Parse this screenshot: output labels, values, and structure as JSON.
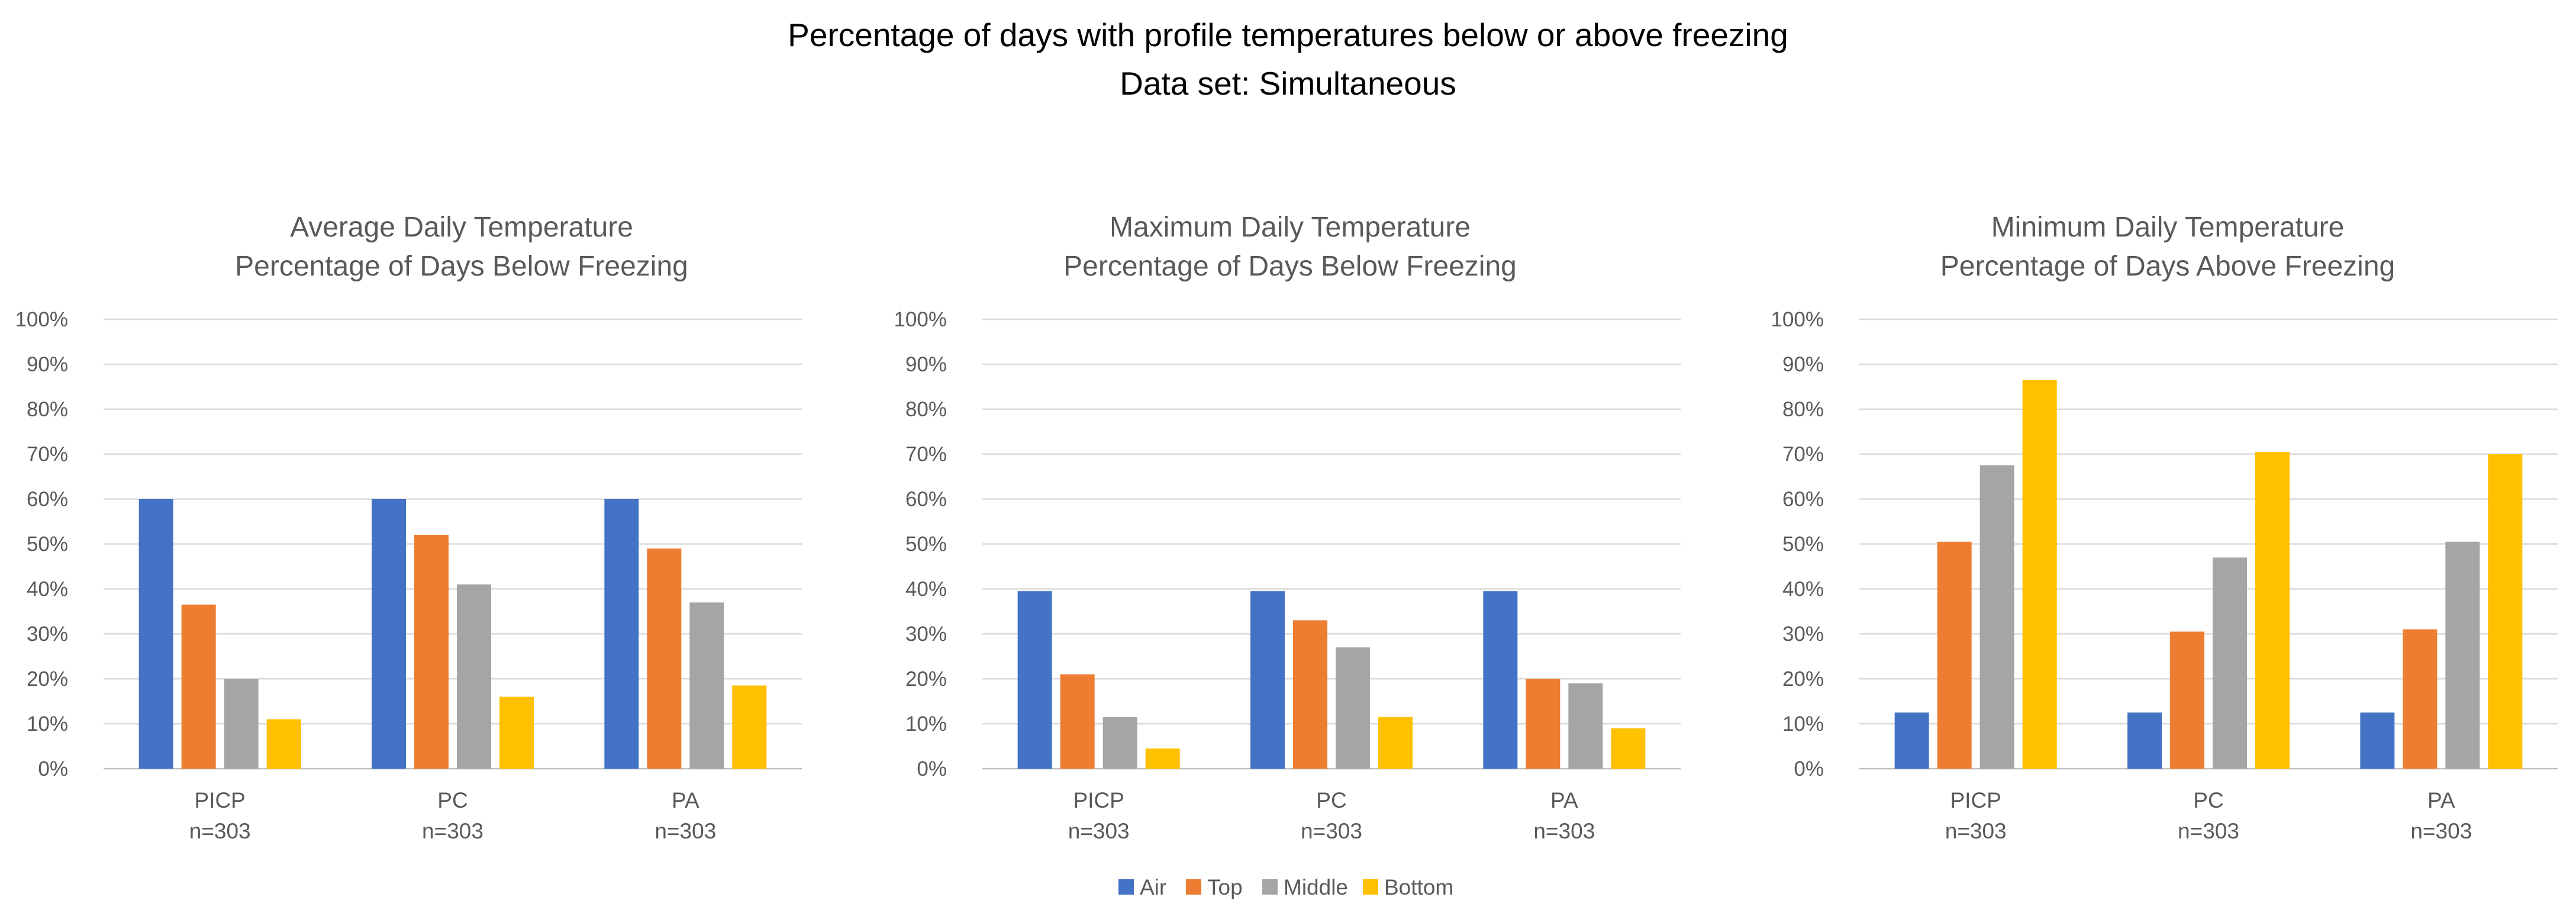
{
  "title": {
    "line1": "Percentage of days with profile temperatures below or above freezing",
    "line2": "Data set: Simultaneous"
  },
  "legend": [
    "Air",
    "Top",
    "Middle",
    "Bottom"
  ],
  "colors": {
    "Air": "#4472C4",
    "Top": "#ED7D31",
    "Middle": "#A5A5A5",
    "Bottom": "#FFC000",
    "grid": "#D9D9D9",
    "axis_text": "#595959"
  },
  "chart_data": [
    {
      "type": "bar",
      "title": [
        "Average Daily Temperature",
        "Percentage of Days Below Freezing"
      ],
      "categories": [
        "PICP",
        "PC",
        "PA"
      ],
      "category_subtitles": [
        "n=303",
        "n=303",
        "n=303"
      ],
      "yticks": [
        "0%",
        "10%",
        "20%",
        "30%",
        "40%",
        "50%",
        "60%",
        "70%",
        "80%",
        "90%",
        "100%"
      ],
      "ylim": [
        0,
        100
      ],
      "series": [
        {
          "name": "Air",
          "values": [
            60,
            60,
            60
          ]
        },
        {
          "name": "Top",
          "values": [
            36.5,
            52,
            49
          ]
        },
        {
          "name": "Middle",
          "values": [
            20,
            41,
            37
          ]
        },
        {
          "name": "Bottom",
          "values": [
            11,
            16,
            18.5
          ]
        }
      ]
    },
    {
      "type": "bar",
      "title": [
        "Maximum Daily Temperature",
        "Percentage of Days Below Freezing"
      ],
      "categories": [
        "PICP",
        "PC",
        "PA"
      ],
      "category_subtitles": [
        "n=303",
        "n=303",
        "n=303"
      ],
      "yticks": [
        "0%",
        "10%",
        "20%",
        "30%",
        "40%",
        "50%",
        "60%",
        "70%",
        "80%",
        "90%",
        "100%"
      ],
      "ylim": [
        0,
        100
      ],
      "series": [
        {
          "name": "Air",
          "values": [
            39.5,
            39.5,
            39.5
          ]
        },
        {
          "name": "Top",
          "values": [
            21,
            33,
            20
          ]
        },
        {
          "name": "Middle",
          "values": [
            11.5,
            27,
            19
          ]
        },
        {
          "name": "Bottom",
          "values": [
            4.5,
            11.5,
            9
          ]
        }
      ]
    },
    {
      "type": "bar",
      "title": [
        "Minimum Daily Temperature",
        "Percentage of Days Above Freezing"
      ],
      "categories": [
        "PICP",
        "PC",
        "PA"
      ],
      "category_subtitles": [
        "n=303",
        "n=303",
        "n=303"
      ],
      "yticks": [
        "0%",
        "10%",
        "20%",
        "30%",
        "40%",
        "50%",
        "60%",
        "70%",
        "80%",
        "90%",
        "100%"
      ],
      "ylim": [
        0,
        100
      ],
      "series": [
        {
          "name": "Air",
          "values": [
            12.5,
            12.5,
            12.5
          ]
        },
        {
          "name": "Top",
          "values": [
            50.5,
            30.5,
            31
          ]
        },
        {
          "name": "Middle",
          "values": [
            67.5,
            47,
            50.5
          ]
        },
        {
          "name": "Bottom",
          "values": [
            86.5,
            70.5,
            70
          ]
        }
      ]
    }
  ]
}
